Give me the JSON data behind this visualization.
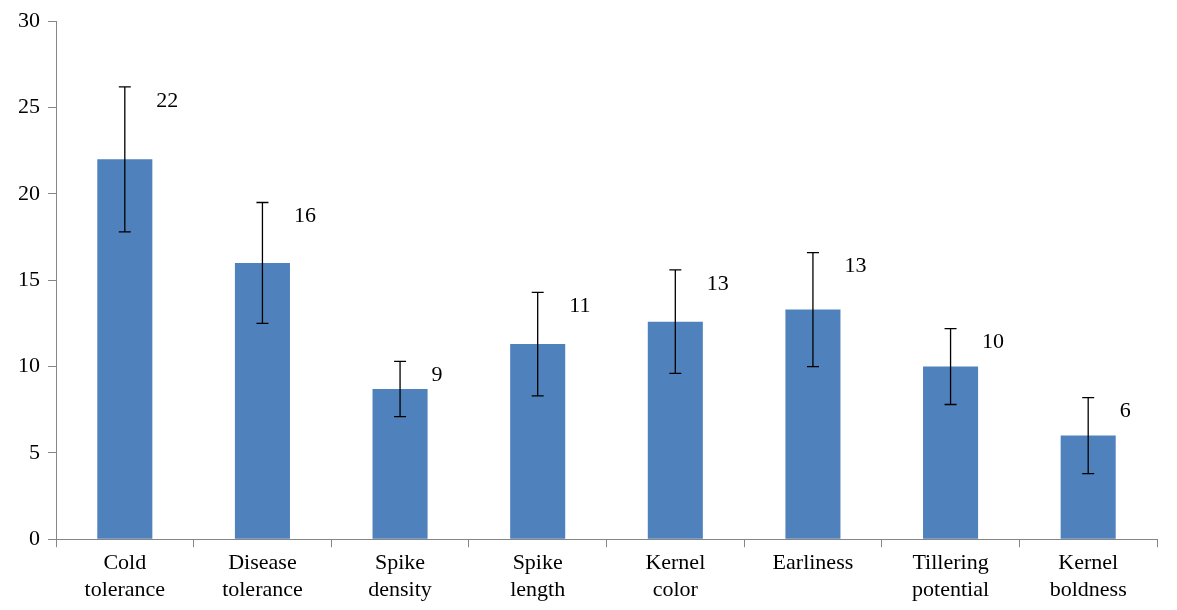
{
  "chart_data": {
    "type": "bar",
    "categories": [
      "Cold tolerance",
      "Disease tolerance",
      "Spike density",
      "Spike length",
      "Kernel color",
      "Earliness",
      "Tillering potential",
      "Kernel boldness"
    ],
    "values": [
      22.0,
      16.0,
      8.7,
      11.3,
      12.6,
      13.3,
      10.0,
      6.0
    ],
    "errors": [
      4.2,
      3.5,
      1.6,
      3.0,
      3.0,
      3.3,
      2.2,
      2.2
    ],
    "value_labels": [
      "22",
      "16",
      "9",
      "11",
      "13",
      "13",
      "10",
      "6"
    ],
    "color": "#4f81bd",
    "ylim": [
      0,
      30
    ],
    "yticks": [
      0,
      5,
      10,
      15,
      20,
      25,
      30
    ],
    "grid": false,
    "legend": false
  }
}
